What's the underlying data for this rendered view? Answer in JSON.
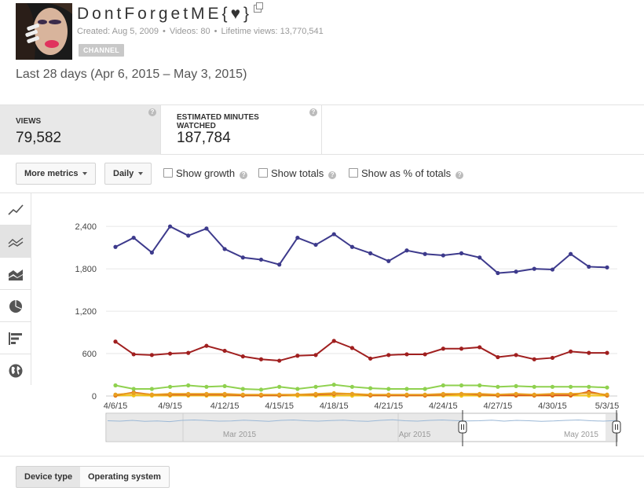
{
  "channel": {
    "name": "DontForgetME{♥}",
    "created": "Created: Aug 5, 2009",
    "videos": "Videos: 80",
    "lifetime_views": "Lifetime views: 13,770,541",
    "badge": "CHANNEL"
  },
  "date_range": "Last 28 days (Apr 6, 2015 – May 3, 2015)",
  "metrics": [
    {
      "label": "VIEWS",
      "value": "79,582",
      "active": true
    },
    {
      "label": "ESTIMATED MINUTES WATCHED",
      "value": "187,784",
      "active": false
    }
  ],
  "controls": {
    "more_metrics": "More metrics",
    "granularity": "Daily",
    "show_growth": "Show growth",
    "show_totals": "Show totals",
    "show_percent": "Show as % of totals"
  },
  "side_toolbar": [
    {
      "icon": "line-chart-icon",
      "active": false
    },
    {
      "icon": "multi-line-chart-icon",
      "active": true
    },
    {
      "icon": "stacked-area-chart-icon",
      "active": false
    },
    {
      "icon": "pie-chart-icon",
      "active": false
    },
    {
      "icon": "bar-chart-icon",
      "active": false
    },
    {
      "icon": "globe-map-icon",
      "active": false
    }
  ],
  "bottom_tabs": [
    {
      "label": "Device type",
      "active": true
    },
    {
      "label": "Operating system",
      "active": false
    }
  ],
  "navigator_labels": [
    "Mar 2015",
    "Apr 2015",
    "May 2015"
  ],
  "colors": {
    "series_blue": "#3d3a8c",
    "series_red": "#a01f1f",
    "series_green": "#8fd14f",
    "series_orange": "#e8a020",
    "series_darkorange": "#d9531e",
    "series_yellow": "#f0c419"
  },
  "chart_data": {
    "type": "line",
    "x": [
      "4/6/15",
      "4/7/15",
      "4/8/15",
      "4/9/15",
      "4/10/15",
      "4/11/15",
      "4/12/15",
      "4/13/15",
      "4/14/15",
      "4/15/15",
      "4/16/15",
      "4/17/15",
      "4/18/15",
      "4/19/15",
      "4/20/15",
      "4/21/15",
      "4/22/15",
      "4/23/15",
      "4/24/15",
      "4/25/15",
      "4/26/15",
      "4/27/15",
      "4/28/15",
      "4/29/15",
      "4/30/15",
      "5/1/15",
      "5/2/15",
      "5/3/15"
    ],
    "x_tick_labels": [
      "4/6/15",
      "4/9/15",
      "4/12/15",
      "4/15/15",
      "4/18/15",
      "4/21/15",
      "4/24/15",
      "4/27/15",
      "4/30/15",
      "5/3/15"
    ],
    "y_ticks": [
      0,
      600,
      1200,
      1800,
      2400
    ],
    "y_tick_labels": [
      "0",
      "600",
      "1,200",
      "1,800",
      "2,400"
    ],
    "ylim": [
      0,
      2580
    ],
    "grid": true,
    "series": [
      {
        "color": "#3d3a8c",
        "values": [
          2110,
          2240,
          2030,
          2400,
          2270,
          2370,
          2080,
          1960,
          1930,
          1860,
          2240,
          2140,
          2290,
          2110,
          2020,
          1910,
          2060,
          2010,
          1990,
          2020,
          1960,
          1740,
          1760,
          1800,
          1790,
          2010,
          1830,
          1820
        ]
      },
      {
        "color": "#a01f1f",
        "values": [
          770,
          590,
          580,
          600,
          610,
          710,
          640,
          560,
          520,
          500,
          570,
          580,
          780,
          680,
          530,
          580,
          590,
          590,
          670,
          670,
          690,
          550,
          580,
          520,
          540,
          630,
          610,
          610
        ]
      },
      {
        "color": "#8fd14f",
        "values": [
          150,
          100,
          100,
          130,
          150,
          130,
          140,
          100,
          90,
          130,
          100,
          130,
          160,
          130,
          110,
          100,
          100,
          100,
          150,
          150,
          150,
          130,
          140,
          130,
          130,
          130,
          130,
          120
        ]
      },
      {
        "color": "#e8a020",
        "values": [
          20,
          40,
          20,
          30,
          30,
          30,
          30,
          20,
          20,
          20,
          20,
          30,
          40,
          30,
          20,
          20,
          20,
          20,
          30,
          30,
          30,
          20,
          30,
          20,
          30,
          30,
          40,
          20
        ]
      },
      {
        "color": "#d9531e",
        "values": [
          10,
          50,
          20,
          20,
          20,
          20,
          20,
          10,
          10,
          10,
          20,
          20,
          30,
          30,
          10,
          10,
          10,
          10,
          20,
          30,
          20,
          10,
          10,
          10,
          10,
          10,
          60,
          10
        ]
      },
      {
        "color": "#f0c419",
        "values": [
          5,
          10,
          5,
          5,
          5,
          5,
          5,
          5,
          5,
          5,
          5,
          5,
          5,
          5,
          5,
          5,
          5,
          5,
          5,
          5,
          5,
          5,
          5,
          5,
          5,
          5,
          5,
          5
        ]
      }
    ]
  }
}
